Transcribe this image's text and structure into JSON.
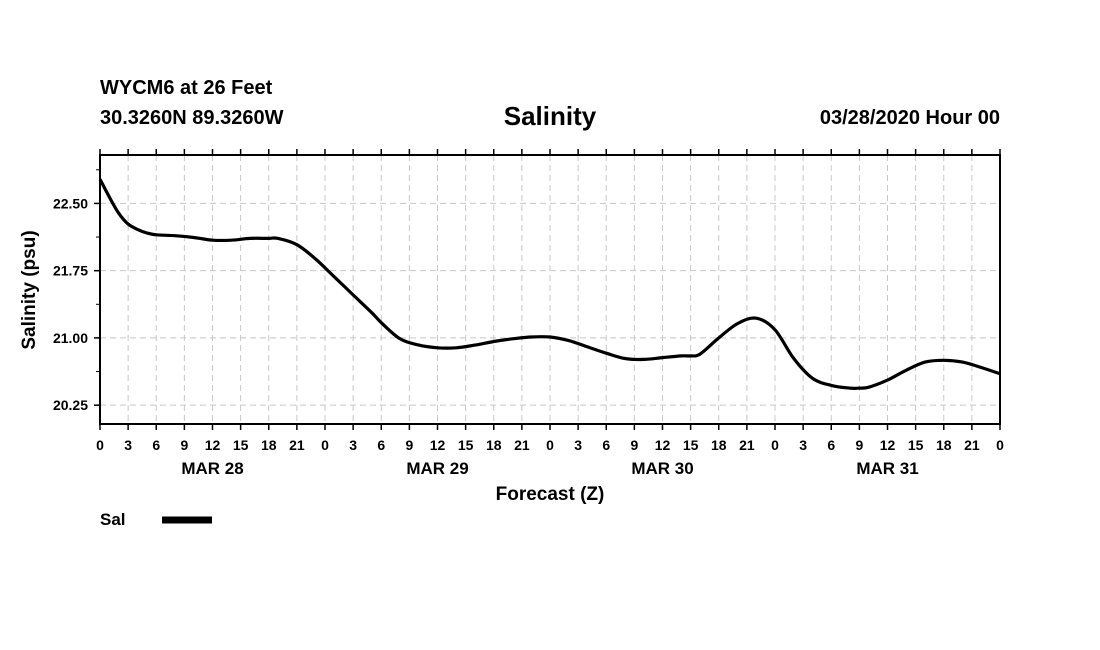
{
  "header": {
    "station_line": "WYCM6 at 26 Feet",
    "coords_line": "30.3260N 89.3260W",
    "issue_time": "03/28/2020 Hour 00"
  },
  "legend": {
    "label": "Sal",
    "color": "#000000"
  },
  "chart_data": {
    "type": "line",
    "title": "Salinity",
    "xlabel": "Forecast (Z)",
    "ylabel": "Salinity (psu)",
    "x_tick_labels": [
      "0",
      "3",
      "6",
      "9",
      "12",
      "15",
      "18",
      "21",
      "0",
      "3",
      "6",
      "9",
      "12",
      "15",
      "18",
      "21",
      "0",
      "3",
      "6",
      "9",
      "12",
      "15",
      "18",
      "21",
      "0",
      "3",
      "6",
      "9",
      "12",
      "15",
      "18",
      "21",
      "0"
    ],
    "day_labels": [
      "MAR 28",
      "MAR 29",
      "MAR 30",
      "MAR 31"
    ],
    "y_tick_labels": [
      "22.50",
      "21.75",
      "21.00",
      "20.25"
    ],
    "y_ticks": [
      22.5,
      21.75,
      21.0,
      20.25
    ],
    "xlim": [
      0,
      96
    ],
    "ylim": [
      20.04,
      23.04
    ],
    "grid": true,
    "legend_position": "bottom-left",
    "series": [
      {
        "name": "Sal",
        "color": "#000000",
        "x": [
          0,
          1,
          2,
          3,
          4,
          5,
          6,
          8,
          10,
          12,
          14,
          16,
          18,
          19,
          21,
          23,
          25,
          27,
          29,
          30,
          32,
          34,
          36,
          38,
          40,
          42,
          44,
          46,
          48,
          50,
          52,
          54,
          56,
          58,
          60,
          62,
          63,
          64,
          66,
          68,
          70,
          72,
          74,
          76,
          78,
          80,
          81,
          82,
          84,
          86,
          88,
          90,
          92,
          94,
          96
        ],
        "y": [
          22.77,
          22.57,
          22.39,
          22.27,
          22.21,
          22.17,
          22.15,
          22.14,
          22.12,
          22.09,
          22.09,
          22.11,
          22.11,
          22.11,
          22.04,
          21.88,
          21.68,
          21.48,
          21.28,
          21.17,
          20.99,
          20.92,
          20.89,
          20.89,
          20.92,
          20.96,
          20.99,
          21.01,
          21.01,
          20.97,
          20.9,
          20.83,
          20.77,
          20.76,
          20.78,
          20.8,
          20.8,
          20.82,
          21.0,
          21.16,
          21.22,
          21.09,
          20.77,
          20.55,
          20.47,
          20.44,
          20.44,
          20.45,
          20.53,
          20.64,
          20.73,
          20.75,
          20.73,
          20.67,
          20.6
        ]
      }
    ]
  }
}
